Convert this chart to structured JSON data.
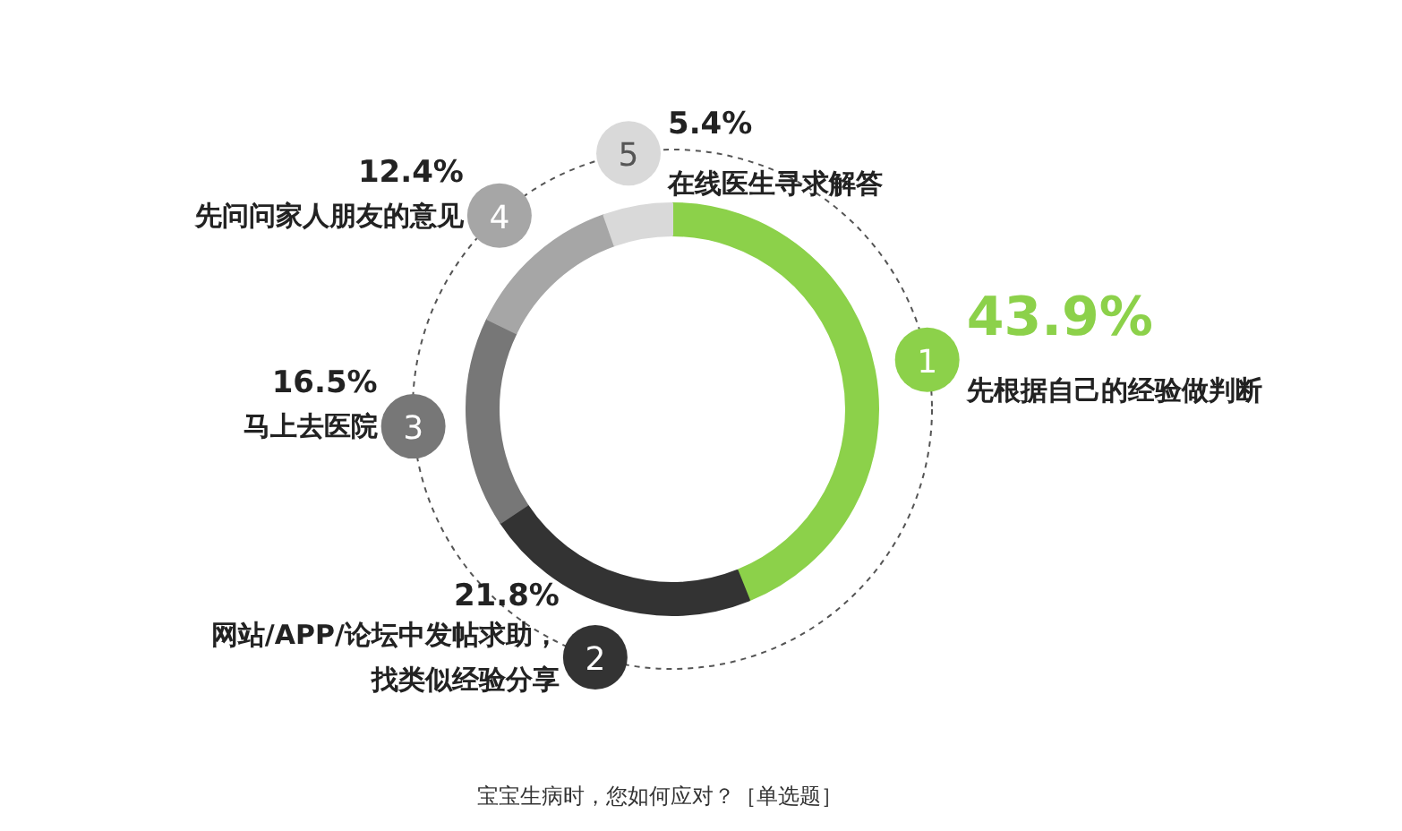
{
  "chart_data": {
    "type": "donut",
    "title": "宝宝生病时，您如何应对？［单选题］",
    "legend": "left",
    "categories": [
      "先根据自己的经验做判断",
      "网站/APP/论坛中发帖求助，找类似经验分享",
      "马上去医院",
      "先问问家人朋友的意见",
      "在线医生寻求解答"
    ],
    "values": [
      43.9,
      21.8,
      16.5,
      12.4,
      5.4
    ],
    "value_labels": [
      "43.9%",
      "21.8%",
      "16.5%",
      "12.4%",
      "5.4%"
    ],
    "colors": [
      "#8cd14a",
      "#333333",
      "#777777",
      "#a6a6a6",
      "#d9d9d9"
    ],
    "annotations": [
      "1",
      "2",
      "3",
      "4",
      "5"
    ]
  }
}
